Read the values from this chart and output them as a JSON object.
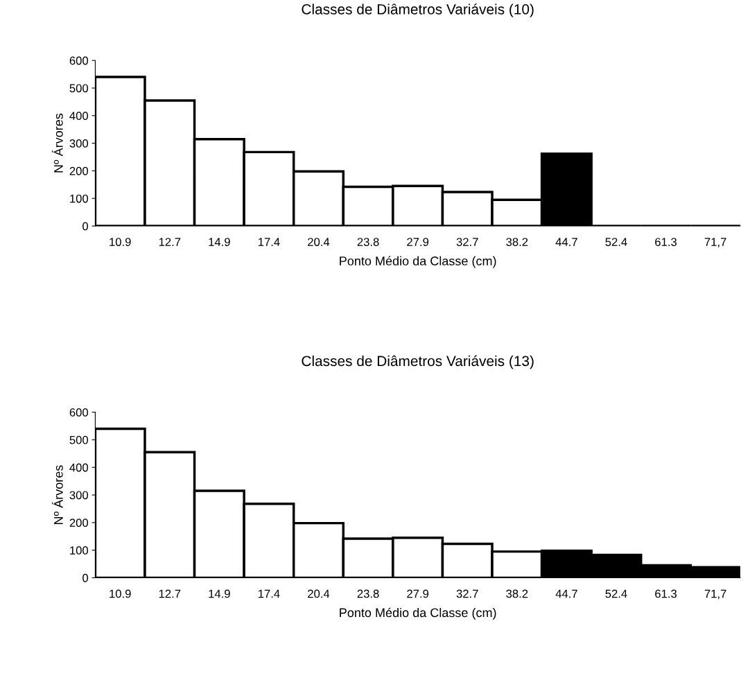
{
  "chart_data": [
    {
      "type": "bar",
      "title": "Classes de Diâmetros Variáveis (10)",
      "xlabel": "Ponto Médio da Classe (cm)",
      "ylabel": "Nº Árvores",
      "categories": [
        "10.9",
        "12.7",
        "14.9",
        "17.4",
        "20.4",
        "23.8",
        "27.9",
        "32.7",
        "38.2",
        "44.7",
        "52.4",
        "61.3",
        "71,7"
      ],
      "values": [
        540,
        455,
        315,
        268,
        198,
        142,
        145,
        123,
        95,
        262,
        0,
        0,
        0
      ],
      "colors": [
        "#ffffff",
        "#ffffff",
        "#ffffff",
        "#ffffff",
        "#ffffff",
        "#ffffff",
        "#ffffff",
        "#ffffff",
        "#ffffff",
        "#000000",
        "#000000",
        "#000000",
        "#000000"
      ],
      "ylim": [
        0,
        600
      ],
      "yticks": [
        0,
        100,
        200,
        300,
        400,
        500,
        600
      ],
      "grid": false,
      "legend": false
    },
    {
      "type": "bar",
      "title": "Classes de Diâmetros Variáveis (13)",
      "xlabel": "Ponto Médio da Classe (cm)",
      "ylabel": "Nº Árvores",
      "categories": [
        "10.9",
        "12.7",
        "14.9",
        "17.4",
        "20.4",
        "23.8",
        "27.9",
        "32.7",
        "38.2",
        "44.7",
        "52.4",
        "61.3",
        "71,7"
      ],
      "values": [
        540,
        455,
        315,
        268,
        198,
        142,
        145,
        123,
        95,
        98,
        83,
        45,
        38
      ],
      "colors": [
        "#ffffff",
        "#ffffff",
        "#ffffff",
        "#ffffff",
        "#ffffff",
        "#ffffff",
        "#ffffff",
        "#ffffff",
        "#ffffff",
        "#000000",
        "#000000",
        "#000000",
        "#000000"
      ],
      "ylim": [
        0,
        600
      ],
      "yticks": [
        0,
        100,
        200,
        300,
        400,
        500,
        600
      ],
      "grid": false,
      "legend": false
    }
  ]
}
